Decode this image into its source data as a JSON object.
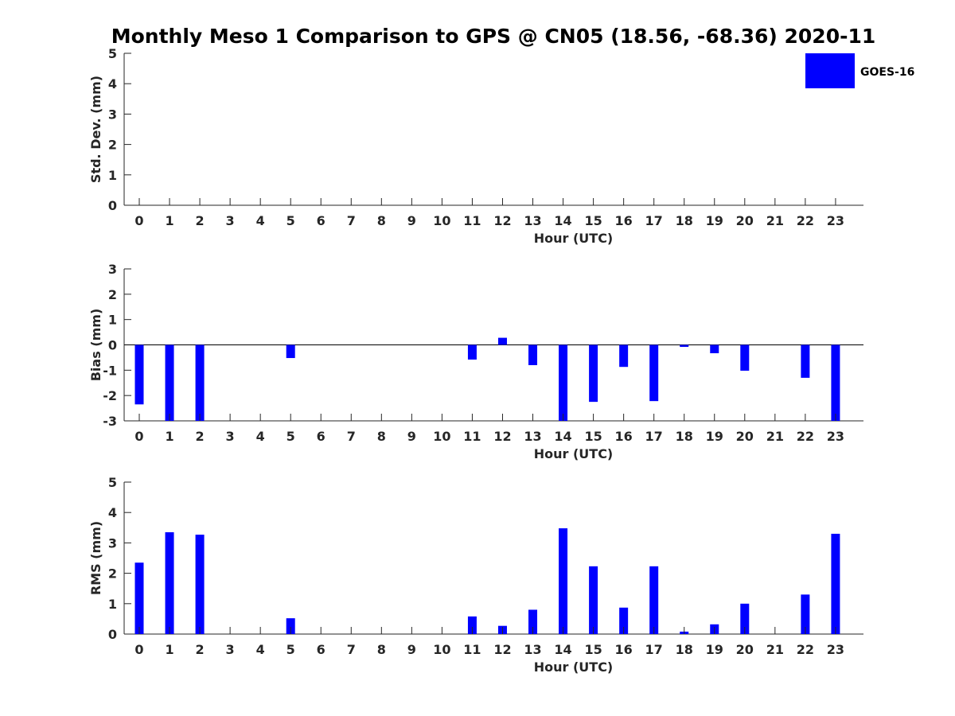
{
  "colors": {
    "bar": "#0000ff",
    "axis": "#262626",
    "background": "#ffffff"
  },
  "chart_data": {
    "title": "Monthly Meso 1 Comparison to GPS @ CN05 (18.56, -68.36) 2020-11",
    "legend": {
      "entries": [
        "GOES-16"
      ],
      "placement": "top-right"
    },
    "panels": [
      {
        "type": "bar",
        "ylabel": "Std. Dev. (mm)",
        "xlabel": "Hour (UTC)",
        "categories": [
          "0",
          "1",
          "2",
          "3",
          "4",
          "5",
          "6",
          "7",
          "8",
          "9",
          "10",
          "11",
          "12",
          "13",
          "14",
          "15",
          "16",
          "17",
          "18",
          "19",
          "20",
          "21",
          "22",
          "23"
        ],
        "ylim": [
          0,
          5
        ],
        "yticks": [
          "0",
          "1",
          "2",
          "3",
          "4",
          "5"
        ],
        "series": [
          {
            "name": "GOES-16",
            "values": [
              0,
              0,
              0,
              0,
              0,
              0,
              0,
              0,
              0,
              0,
              0,
              0,
              0,
              0,
              0,
              0,
              0,
              0,
              0,
              0,
              0,
              0,
              0,
              0
            ]
          }
        ]
      },
      {
        "type": "bar",
        "ylabel": "Bias (mm)",
        "xlabel": "Hour (UTC)",
        "categories": [
          "0",
          "1",
          "2",
          "3",
          "4",
          "5",
          "6",
          "7",
          "8",
          "9",
          "10",
          "11",
          "12",
          "13",
          "14",
          "15",
          "16",
          "17",
          "18",
          "19",
          "20",
          "21",
          "22",
          "23"
        ],
        "ylim": [
          -3,
          3
        ],
        "yticks": [
          "-3",
          "-2",
          "-1",
          "0",
          "1",
          "2",
          "3"
        ],
        "zero_line": true,
        "series": [
          {
            "name": "GOES-16",
            "values": [
              -2.35,
              -3.35,
              -3.25,
              0,
              0,
              -0.52,
              0,
              0,
              0,
              0,
              0,
              -0.58,
              0.28,
              -0.8,
              -3.5,
              -2.25,
              -0.87,
              -2.22,
              -0.08,
              -0.33,
              -1.02,
              0,
              -1.3,
              -3.3
            ]
          }
        ]
      },
      {
        "type": "bar",
        "ylabel": "RMS (mm)",
        "xlabel": "Hour (UTC)",
        "categories": [
          "0",
          "1",
          "2",
          "3",
          "4",
          "5",
          "6",
          "7",
          "8",
          "9",
          "10",
          "11",
          "12",
          "13",
          "14",
          "15",
          "16",
          "17",
          "18",
          "19",
          "20",
          "21",
          "22",
          "23"
        ],
        "ylim": [
          0,
          5
        ],
        "yticks": [
          "0",
          "1",
          "2",
          "3",
          "4",
          "5"
        ],
        "series": [
          {
            "name": "GOES-16",
            "values": [
              2.35,
              3.35,
              3.27,
              0,
              0,
              0.52,
              0,
              0,
              0,
              0,
              0,
              0.58,
              0.27,
              0.8,
              3.48,
              2.23,
              0.87,
              2.23,
              0.08,
              0.32,
              1.0,
              0,
              1.3,
              3.3
            ]
          }
        ]
      }
    ]
  }
}
